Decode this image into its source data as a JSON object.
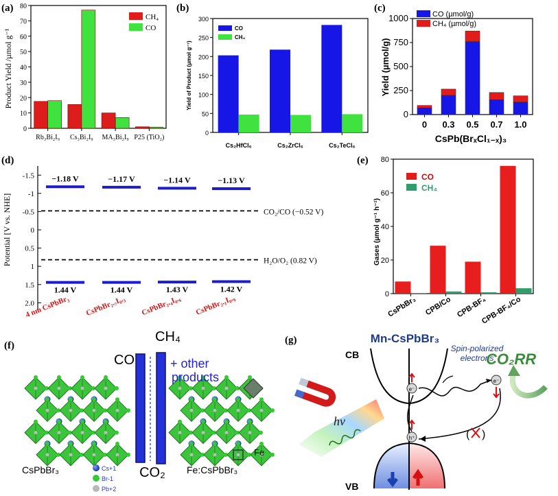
{
  "panel_labels": {
    "a": "(a)",
    "b": "(b)",
    "c": "(c)",
    "d": "(d)",
    "e": "(e)",
    "f": "(f)",
    "g": "(g)"
  },
  "colors": {
    "red": "#e21b1b",
    "dark_red": "#b40e0e",
    "green": "#3fe23f",
    "blue": "#1616e6",
    "navy": "#1c1ccf",
    "teal": "#2f9e6b"
  },
  "chart_data": [
    {
      "id": "a",
      "type": "bar",
      "ylabel": "Product Yield /µmol g⁻¹",
      "ylim": [
        0,
        80
      ],
      "yticks": [
        0,
        10,
        20,
        30,
        40,
        50,
        60,
        70,
        80
      ],
      "categories": [
        "Rb₃Bi₂I₉",
        "Cs₃Bi₂I₉",
        "MA₃Bi₂I₉",
        "P25 (TiO₂)"
      ],
      "series": [
        {
          "name": "CH₄",
          "values": [
            17.5,
            15.5,
            10,
            1
          ]
        },
        {
          "name": "CO",
          "values": [
            18,
            77,
            7,
            0.8
          ]
        }
      ]
    },
    {
      "id": "b",
      "type": "bar",
      "ylabel": "Yield of Product (µmol g⁻¹)",
      "ylim": [
        0,
        300
      ],
      "yticks": [
        0,
        50,
        100,
        150,
        200,
        250,
        300
      ],
      "categories": [
        "Cs₂HfCl₆",
        "Cs₂ZrCl₆",
        "Cs₂TeCl₆"
      ],
      "series": [
        {
          "name": "CO",
          "values": [
            203,
            218,
            283
          ]
        },
        {
          "name": "CH₄",
          "values": [
            47,
            46,
            48
          ]
        }
      ]
    },
    {
      "id": "c",
      "type": "bar",
      "stacked": true,
      "ylabel": "Yield (µmol/g)",
      "xlabel": "CsPb(BrₓCl₁₋ₓ)₃",
      "ylim": [
        0,
        1000
      ],
      "yticks": [
        0,
        250,
        500,
        750,
        1000
      ],
      "categories": [
        "0",
        "0.3",
        "0.5",
        "0.7",
        "1.0"
      ],
      "series": [
        {
          "name": "CO (µmol/g)",
          "values": [
            70,
            200,
            760,
            155,
            130
          ]
        },
        {
          "name": "CH₄ (µmol/g)",
          "values": [
            25,
            65,
            110,
            75,
            65
          ]
        }
      ]
    },
    {
      "id": "d",
      "type": "energy-levels",
      "ylabel": "Potential [V vs. NHE]",
      "ylim": [
        -1.75,
        2.2
      ],
      "yticks": [
        "-1.5",
        "-1",
        "-0.5",
        "0",
        "0.5",
        "1",
        "1.5",
        "2.0"
      ],
      "categories": [
        "4 nm CsPbBr₃",
        "CsPbBr₂.₇I₀.₃",
        "CsPbBr₂.₄I₀.₆",
        "CsPbBr₂.₁I₀.₉"
      ],
      "cb": [
        -1.18,
        -1.17,
        -1.14,
        -1.13
      ],
      "vb": [
        1.44,
        1.44,
        1.43,
        1.42
      ],
      "cb_labels": [
        "−1.18 V",
        "−1.17 V",
        "−1.14 V",
        "−1.13 V"
      ],
      "vb_labels": [
        "1.44 V",
        "1.44 V",
        "1.43 V",
        "1.42 V"
      ],
      "refs": [
        {
          "value": -0.52,
          "label": "CO₂/CO (−0.52 V)"
        },
        {
          "value": 0.82,
          "label": "H₂O/O₂ (0.82 V)"
        }
      ]
    },
    {
      "id": "e",
      "type": "bar",
      "ylabel": "Gases (µmol g⁻¹ h⁻¹)",
      "ylim": [
        0,
        80
      ],
      "yticks": [
        0,
        20,
        40,
        60,
        80
      ],
      "categories": [
        "CsPbBr₃",
        "CPB/Co",
        "CPB-BF₄",
        "CPB-BF₄/Co"
      ],
      "series": [
        {
          "name": "CO",
          "values": [
            7.2,
            28.5,
            19,
            76
          ]
        },
        {
          "name": "CH₄",
          "values": [
            0.3,
            1.3,
            0.8,
            3.2
          ]
        }
      ]
    }
  ],
  "panel_f": {
    "co": "CO",
    "ch4": "CH₄",
    "co2": "CO₂",
    "other": "+ other",
    "products": "products",
    "left_label": "CsPbBr₃",
    "right_label": "Fe:CsPbBr₃",
    "fe": "Fe",
    "legend": [
      "Cs+1",
      "Br-1",
      "Pb+2"
    ]
  },
  "panel_g": {
    "title": "Mn-CsPbBr₃",
    "cb": "CB",
    "vb": "VB",
    "spin1": "Spin-polarized",
    "spin2": "electrons",
    "co2rr": "CO₂RR",
    "hv": "hν",
    "e": "e⁻",
    "h": "h⁺"
  }
}
